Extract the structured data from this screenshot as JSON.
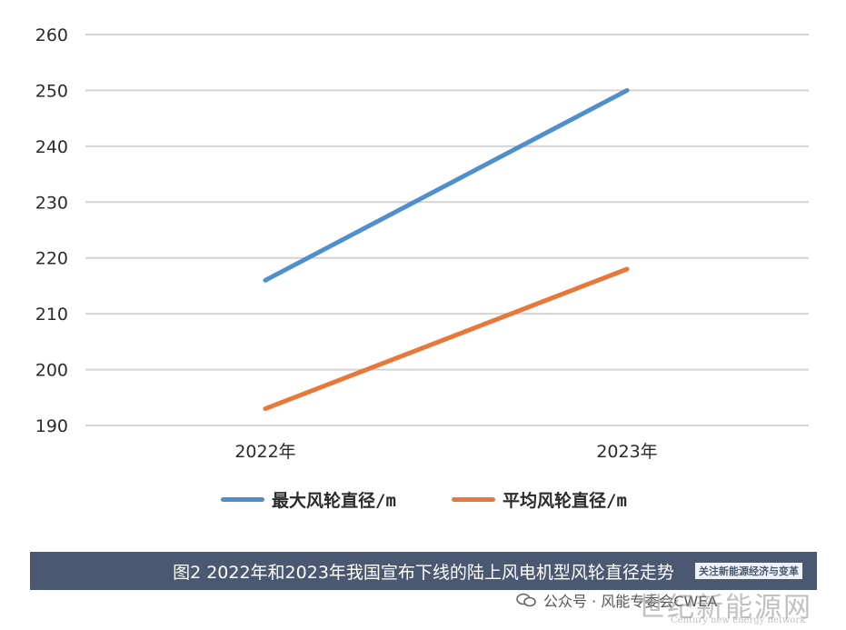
{
  "chart_data": {
    "type": "line",
    "categories": [
      "2022年",
      "2023年"
    ],
    "yticks": [
      190,
      200,
      210,
      220,
      230,
      240,
      250,
      260
    ],
    "ylim": [
      190,
      260
    ],
    "grid": true,
    "legend_position": "bottom",
    "series": [
      {
        "name": "最大风轮直径/m",
        "values": [
          216,
          250
        ],
        "color": "#4f8fcb"
      },
      {
        "name": "平均风轮直径/m",
        "values": [
          193,
          218
        ],
        "color": "#e8773a"
      }
    ]
  },
  "caption": {
    "text": "图2 2022年和2023年我国宣布下线的陆上风电机型风轮直径走势",
    "watermark_text": "关注新能源经济与变革"
  },
  "footer": {
    "account": "公众号 · 风能专委会CWEA",
    "icon": "wechat-icon"
  },
  "watermark": {
    "main": "世纪新能源网",
    "sub": "Century new energy network"
  }
}
